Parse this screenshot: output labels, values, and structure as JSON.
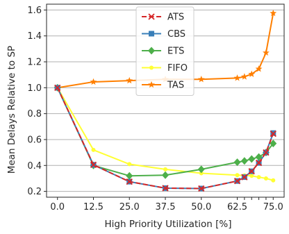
{
  "chart_data": {
    "type": "line",
    "title": "",
    "xlabel": "High Priority Utilization [%]",
    "ylabel": "Mean Delays Relative to SP",
    "xlim": [
      -3.8,
      78.8
    ],
    "ylim": [
      0.155,
      1.645
    ],
    "x_ticks": [
      0,
      12.5,
      25,
      37.5,
      50,
      62.5,
      75
    ],
    "x_tick_labels": [
      "0.0",
      "12.5",
      "25.0",
      "37.5",
      "50.0",
      "62.5",
      "75.0"
    ],
    "x_minor_ticks": [
      65,
      67.5,
      70,
      72.5
    ],
    "y_ticks": [
      0.2,
      0.4,
      0.6,
      0.8,
      1.0,
      1.2,
      1.4,
      1.6
    ],
    "y_tick_labels": [
      "0.2",
      "0.4",
      "0.6",
      "0.8",
      "1.0",
      "1.2",
      "1.4",
      "1.6"
    ],
    "grid": "horizontal",
    "legend_position": "top-center",
    "x": [
      0,
      12.5,
      25,
      37.5,
      50,
      62.5,
      65,
      67.5,
      70,
      72.5,
      75
    ],
    "series": [
      {
        "name": "ATS",
        "color": "#d62728",
        "marker": "x",
        "dashed": true,
        "values": [
          1.0,
          0.405,
          0.275,
          0.225,
          0.222,
          0.28,
          0.31,
          0.355,
          0.42,
          0.5,
          0.645
        ]
      },
      {
        "name": "CBS",
        "color": "#3a7fb8",
        "marker": "square",
        "dashed": false,
        "values": [
          1.0,
          0.405,
          0.275,
          0.225,
          0.222,
          0.28,
          0.31,
          0.355,
          0.42,
          0.5,
          0.65
        ]
      },
      {
        "name": "ETS",
        "color": "#4daf4a",
        "marker": "diamond",
        "dashed": false,
        "values": [
          1.0,
          0.4,
          0.32,
          0.325,
          0.37,
          0.425,
          0.435,
          0.45,
          0.465,
          0.5,
          0.57
        ]
      },
      {
        "name": "FIFO",
        "color": "#ffff33",
        "marker": "dot",
        "dashed": false,
        "values": [
          1.0,
          0.52,
          0.41,
          0.37,
          0.34,
          0.325,
          0.323,
          0.32,
          0.31,
          0.3,
          0.285
        ]
      },
      {
        "name": "TAS",
        "color": "#ff7f00",
        "marker": "star",
        "dashed": false,
        "values": [
          1.0,
          1.045,
          1.055,
          1.065,
          1.065,
          1.075,
          1.085,
          1.105,
          1.145,
          1.27,
          1.575
        ]
      }
    ]
  }
}
